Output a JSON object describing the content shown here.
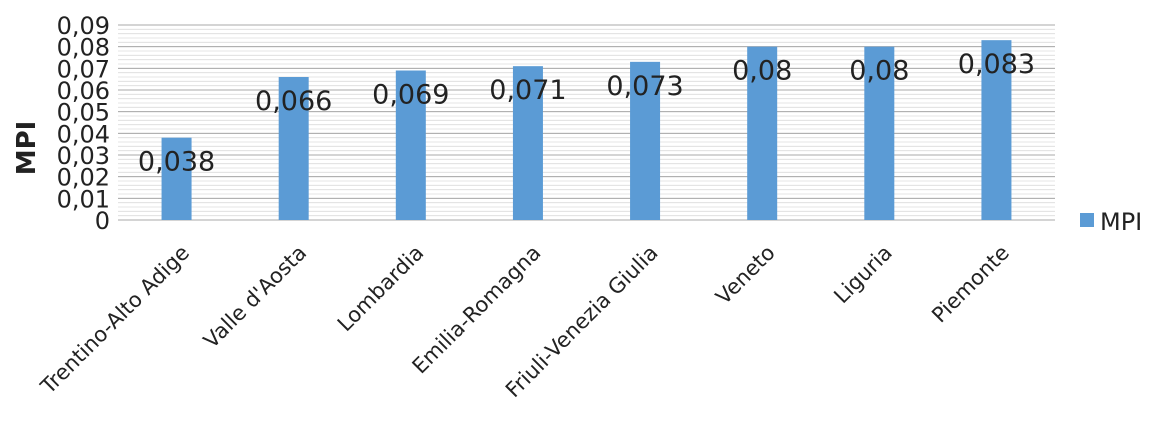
{
  "chart_data": {
    "type": "bar",
    "title": "",
    "xlabel": "",
    "ylabel": "MPI",
    "ylim": [
      0,
      0.09
    ],
    "ytick_step": 0.01,
    "ytick_labels": [
      "0",
      "0,01",
      "0,02",
      "0,03",
      "0,04",
      "0,05",
      "0,06",
      "0,07",
      "0,08",
      "0,09"
    ],
    "categories": [
      "Trentino-Alto Adige",
      "Valle d'Aosta",
      "Lombardia",
      "Emilia-Romagna",
      "Friuli-Venezia Giulia",
      "Veneto",
      "Liguria",
      "Piemonte"
    ],
    "series": [
      {
        "name": "MPI",
        "color": "#5b9bd5",
        "values": [
          0.038,
          0.066,
          0.069,
          0.071,
          0.073,
          0.08,
          0.08,
          0.083
        ],
        "value_labels": [
          "0,038",
          "0,066",
          "0,069",
          "0,071",
          "0,073",
          "0,08",
          "0,08",
          "0,083"
        ]
      }
    ],
    "grid": true,
    "legend_position": "right"
  }
}
